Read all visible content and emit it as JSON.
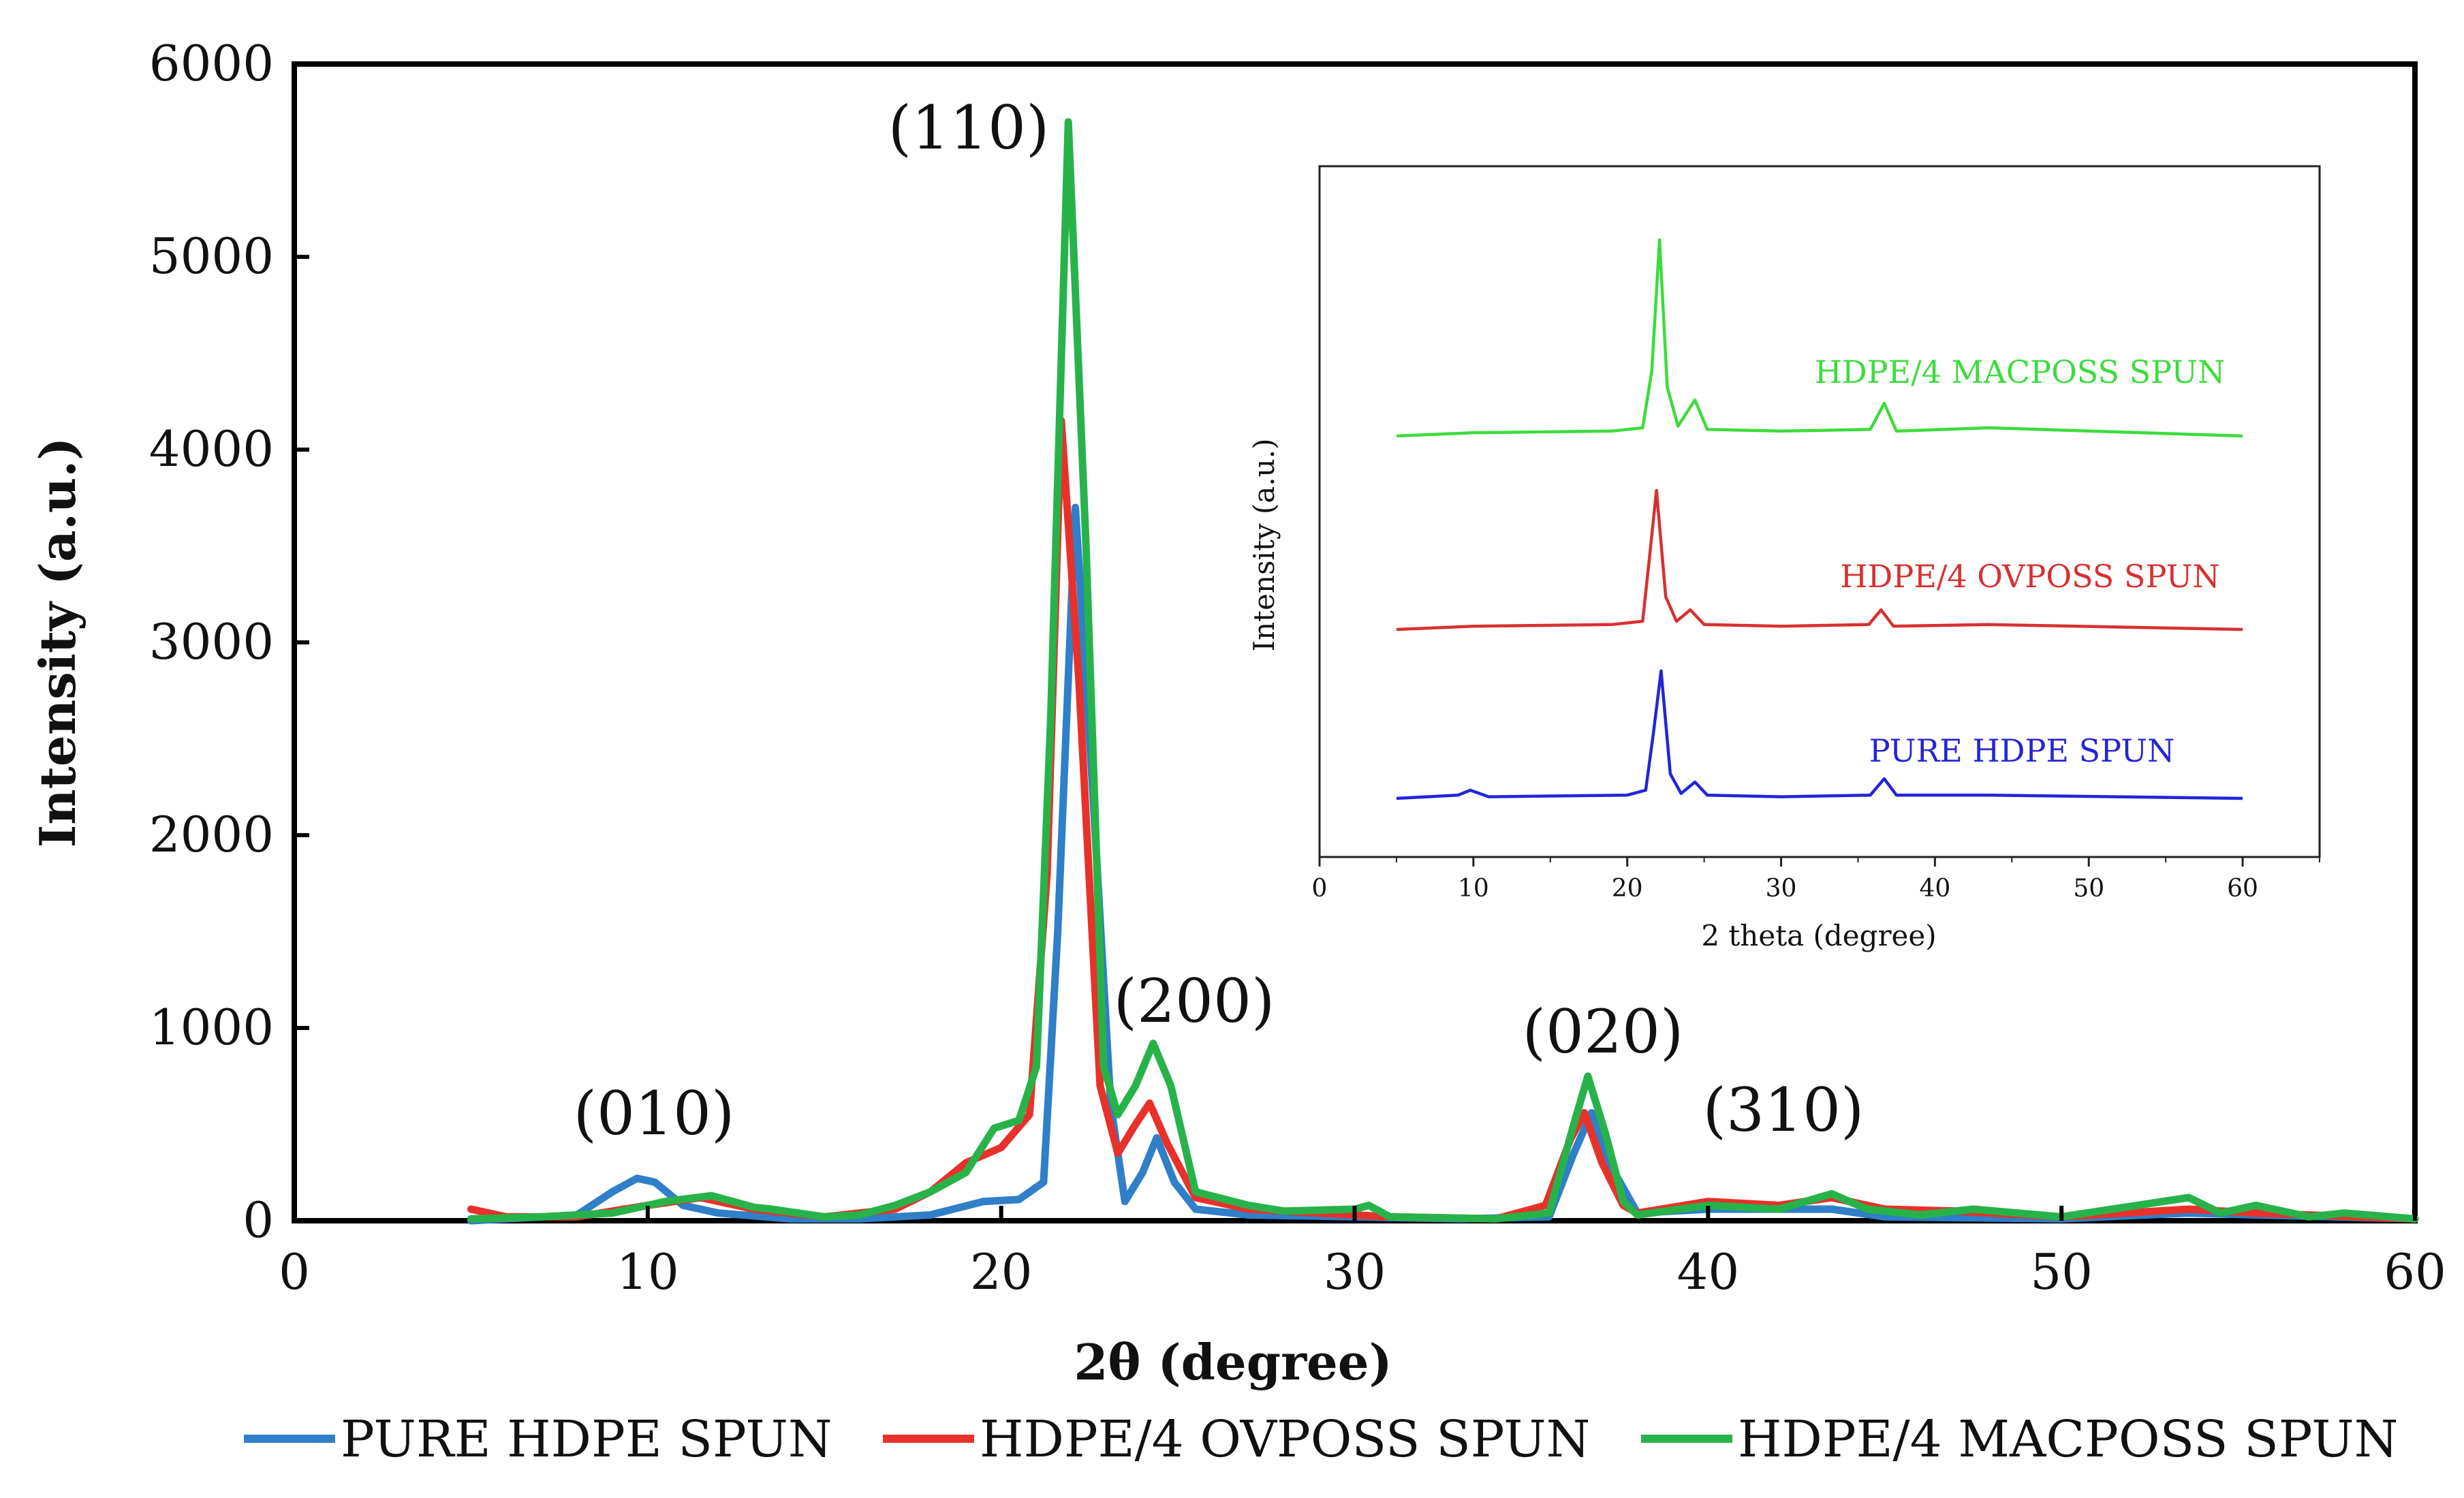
{
  "chart_data": [
    {
      "type": "line",
      "title": "",
      "xlabel": "2θ (degree)",
      "ylabel": "Intensity (a.u.)",
      "xlim": [
        0,
        60
      ],
      "ylim": [
        0,
        6000
      ],
      "xticks": [
        "0",
        "10",
        "20",
        "30",
        "40",
        "50",
        "60"
      ],
      "yticks": [
        "0",
        "1000",
        "2000",
        "3000",
        "4000",
        "5000",
        "6000"
      ],
      "grid": false,
      "legend_position": "bottom",
      "series": [
        {
          "name": "PURE HDPE SPUN",
          "color": "#2f7fc9",
          "points": [
            [
              5,
              0
            ],
            [
              8,
              30
            ],
            [
              9,
              150
            ],
            [
              9.7,
              220
            ],
            [
              10.2,
              200
            ],
            [
              11,
              80
            ],
            [
              12,
              40
            ],
            [
              14,
              10
            ],
            [
              16,
              10
            ],
            [
              18,
              30
            ],
            [
              19.5,
              100
            ],
            [
              20.5,
              110
            ],
            [
              21.2,
              200
            ],
            [
              21.6,
              1500
            ],
            [
              22.1,
              3700
            ],
            [
              22.6,
              2200
            ],
            [
              23.1,
              600
            ],
            [
              23.5,
              100
            ],
            [
              24,
              250
            ],
            [
              24.4,
              430
            ],
            [
              24.9,
              200
            ],
            [
              25.5,
              60
            ],
            [
              27,
              30
            ],
            [
              30,
              20
            ],
            [
              33,
              10
            ],
            [
              35.5,
              20
            ],
            [
              36.2,
              350
            ],
            [
              36.7,
              560
            ],
            [
              37.2,
              300
            ],
            [
              38,
              40
            ],
            [
              40,
              60
            ],
            [
              43.5,
              60
            ],
            [
              45,
              20
            ],
            [
              50,
              10
            ],
            [
              53.6,
              40
            ],
            [
              55.5,
              30
            ],
            [
              60,
              10
            ]
          ]
        },
        {
          "name": "HDPE/4 OVPOSS SPUN",
          "color": "#e8312a",
          "points": [
            [
              5,
              60
            ],
            [
              6,
              20
            ],
            [
              8,
              20
            ],
            [
              10,
              80
            ],
            [
              11.5,
              120
            ],
            [
              13,
              60
            ],
            [
              15,
              20
            ],
            [
              17,
              60
            ],
            [
              18,
              150
            ],
            [
              19,
              300
            ],
            [
              20,
              380
            ],
            [
              20.8,
              550
            ],
            [
              21.3,
              1800
            ],
            [
              21.7,
              4150
            ],
            [
              22.2,
              2800
            ],
            [
              22.8,
              700
            ],
            [
              23.3,
              350
            ],
            [
              23.8,
              500
            ],
            [
              24.2,
              610
            ],
            [
              24.7,
              400
            ],
            [
              25.5,
              120
            ],
            [
              27,
              60
            ],
            [
              29,
              40
            ],
            [
              31,
              20
            ],
            [
              34,
              10
            ],
            [
              35.4,
              80
            ],
            [
              36.1,
              420
            ],
            [
              36.5,
              560
            ],
            [
              37,
              300
            ],
            [
              37.6,
              80
            ],
            [
              38,
              40
            ],
            [
              40,
              100
            ],
            [
              42,
              80
            ],
            [
              43.5,
              120
            ],
            [
              45,
              60
            ],
            [
              47,
              50
            ],
            [
              50,
              20
            ],
            [
              53.6,
              60
            ],
            [
              55.5,
              40
            ],
            [
              60,
              10
            ]
          ]
        },
        {
          "name": "HDPE/4 MACPOSS SPUN",
          "color": "#27b34a",
          "points": [
            [
              5,
              10
            ],
            [
              7,
              20
            ],
            [
              9,
              40
            ],
            [
              10.5,
              100
            ],
            [
              11.8,
              130
            ],
            [
              13,
              70
            ],
            [
              13.5,
              60
            ],
            [
              15,
              20
            ],
            [
              16,
              30
            ],
            [
              17,
              80
            ],
            [
              18,
              150
            ],
            [
              19,
              250
            ],
            [
              19.8,
              480
            ],
            [
              20.5,
              520
            ],
            [
              21,
              800
            ],
            [
              21.4,
              2600
            ],
            [
              21.9,
              5700
            ],
            [
              22.4,
              3500
            ],
            [
              22.9,
              800
            ],
            [
              23.3,
              550
            ],
            [
              23.8,
              700
            ],
            [
              24.3,
              920
            ],
            [
              24.8,
              700
            ],
            [
              25.5,
              150
            ],
            [
              27,
              80
            ],
            [
              28,
              50
            ],
            [
              30,
              60
            ],
            [
              30.4,
              80
            ],
            [
              31,
              20
            ],
            [
              34,
              10
            ],
            [
              35.5,
              40
            ],
            [
              36.2,
              500
            ],
            [
              36.6,
              750
            ],
            [
              37.1,
              450
            ],
            [
              37.6,
              100
            ],
            [
              38,
              30
            ],
            [
              40,
              80
            ],
            [
              42,
              60
            ],
            [
              43.5,
              140
            ],
            [
              44.5,
              60
            ],
            [
              46,
              30
            ],
            [
              47.5,
              60
            ],
            [
              50,
              20
            ],
            [
              53.6,
              120
            ],
            [
              54.5,
              40
            ],
            [
              55.5,
              80
            ],
            [
              57,
              20
            ],
            [
              58,
              40
            ],
            [
              60,
              10
            ]
          ]
        }
      ],
      "annotations": [
        "(010)",
        "(110)",
        "(200)",
        "(020)",
        "(310)"
      ]
    },
    {
      "type": "line",
      "title": "",
      "xlabel": "2 theta (degree)",
      "ylabel": "Intensity (a.u.)",
      "xlim": [
        0,
        65
      ],
      "xticks": [
        "0",
        "10",
        "20",
        "30",
        "40",
        "50",
        "60"
      ],
      "grid": false,
      "series": [
        {
          "name": "HDPE/4 MACPOSS SPUN",
          "color": "#3cdc3c",
          "offset": 2.2,
          "points": [
            [
              5,
              0
            ],
            [
              10,
              0.02
            ],
            [
              19,
              0.03
            ],
            [
              21,
              0.05
            ],
            [
              21.6,
              0.4
            ],
            [
              22.1,
              1.2
            ],
            [
              22.6,
              0.3
            ],
            [
              23.3,
              0.06
            ],
            [
              24.4,
              0.22
            ],
            [
              25.2,
              0.04
            ],
            [
              30,
              0.03
            ],
            [
              35.8,
              0.04
            ],
            [
              36.7,
              0.2
            ],
            [
              37.5,
              0.03
            ],
            [
              43.5,
              0.05
            ],
            [
              60,
              0.0
            ]
          ]
        },
        {
          "name": "HDPE/4 OVPOSS SPUN",
          "color": "#d83030",
          "offset": 1.1,
          "points": [
            [
              5,
              0
            ],
            [
              10,
              0.02
            ],
            [
              19,
              0.03
            ],
            [
              21,
              0.05
            ],
            [
              21.4,
              0.4
            ],
            [
              21.9,
              0.85
            ],
            [
              22.5,
              0.2
            ],
            [
              23.2,
              0.05
            ],
            [
              24.1,
              0.12
            ],
            [
              25,
              0.03
            ],
            [
              30,
              0.02
            ],
            [
              35.7,
              0.03
            ],
            [
              36.5,
              0.12
            ],
            [
              37.3,
              0.02
            ],
            [
              43.5,
              0.03
            ],
            [
              60,
              0.0
            ]
          ]
        },
        {
          "name": "PURE HDPE SPUN",
          "color": "#2424d8",
          "offset": 0,
          "points": [
            [
              5,
              0
            ],
            [
              9,
              0.02
            ],
            [
              9.8,
              0.05
            ],
            [
              11,
              0.01
            ],
            [
              20,
              0.02
            ],
            [
              21.2,
              0.05
            ],
            [
              21.7,
              0.4
            ],
            [
              22.2,
              0.78
            ],
            [
              22.8,
              0.15
            ],
            [
              23.5,
              0.03
            ],
            [
              24.4,
              0.1
            ],
            [
              25.2,
              0.02
            ],
            [
              30,
              0.01
            ],
            [
              35.8,
              0.02
            ],
            [
              36.7,
              0.12
            ],
            [
              37.5,
              0.02
            ],
            [
              43.5,
              0.02
            ],
            [
              60,
              0.0
            ]
          ]
        }
      ]
    }
  ],
  "legend": [
    "PURE HDPE SPUN",
    "HDPE/4 OVPOSS SPUN",
    "HDPE/4 MACPOSS SPUN"
  ]
}
